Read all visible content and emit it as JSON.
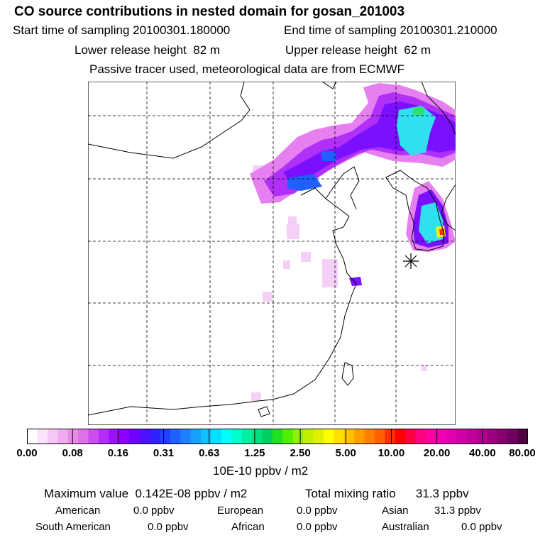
{
  "title": "CO  source contributions in nested domain for gosan_201003",
  "sampling": {
    "start_label": "Start time of sampling",
    "start_value": "20100301.180000",
    "end_label": "End time of sampling",
    "end_value": "20100301.210000"
  },
  "release": {
    "lower_label": "Lower release height",
    "lower_value": "82 m",
    "upper_label": "Upper release height",
    "upper_value": "62 m"
  },
  "note": "Passive tracer used, meteorological data are from ECMWF",
  "colorbar": {
    "ticks": [
      "0.00",
      "0.08",
      "0.16",
      "0.31",
      "0.63",
      "1.25",
      "2.50",
      "5.00",
      "10.00",
      "20.00",
      "40.00",
      "80.00"
    ],
    "unit": "10E-10 ppbv / m2",
    "colors": [
      "#ffffff",
      "#fbe3fb",
      "#f6c8f6",
      "#f0acf0",
      "#e98ae9",
      "#e070e6",
      "#cc4cf0",
      "#b82cf8",
      "#9a12fb",
      "#8c00ff",
      "#7000ff",
      "#5010ff",
      "#3020ff",
      "#2040ff",
      "#2060ff",
      "#1c80ff",
      "#18a0ff",
      "#10c0ff",
      "#00e0ff",
      "#00ffff",
      "#00ffcc",
      "#00f0a0",
      "#00e080",
      "#00d060",
      "#20e020",
      "#50f000",
      "#90f000",
      "#c0f000",
      "#e0f000",
      "#ffff00",
      "#ffe000",
      "#ffc000",
      "#ffa000",
      "#ff8000",
      "#ff6000",
      "#ff3000",
      "#ff0000",
      "#ff0040",
      "#ff0080",
      "#ff00a0",
      "#f000b0",
      "#e000b0",
      "#d000a8",
      "#c0009c",
      "#b00090",
      "#9c0080",
      "#880070",
      "#700060",
      "#500040"
    ]
  },
  "stats": {
    "max_label": "Maximum value",
    "max_value": "0.142E-08 ppbv / m2",
    "total_label": "Total mixing ratio",
    "total_value": "31.3 ppbv"
  },
  "regions": [
    {
      "name": "American",
      "value": "0.0 ppbv"
    },
    {
      "name": "European",
      "value": "0.0 ppbv"
    },
    {
      "name": "Asian",
      "value": "31.3 ppbv"
    },
    {
      "name": "South American",
      "value": "0.0 ppbv"
    },
    {
      "name": "African",
      "value": "0.0 ppbv"
    },
    {
      "name": "Australian",
      "value": "0.0 ppbv"
    }
  ],
  "map": {
    "receptor_symbol": "star",
    "plume_colors": {
      "faint": "#f4d0f6",
      "light": "#e680f0",
      "medium": "#b030f8",
      "strong": "#7a10ff",
      "blue": "#2060ff",
      "cyan": "#30e0f0",
      "green": "#30e070",
      "yellow": "#f0f000",
      "red": "#ff3000"
    }
  }
}
